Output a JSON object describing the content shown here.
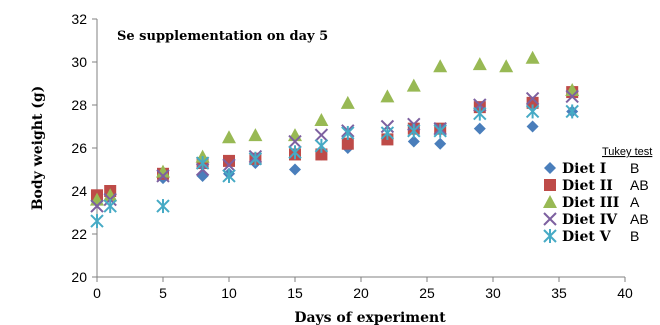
{
  "chart_data": {
    "type": "scatter",
    "title": "Se supplementation on day 5",
    "xlabel": "Days of experiment",
    "ylabel": "Body weight (g)",
    "xlim": [
      0,
      40
    ],
    "ylim": [
      20,
      32
    ],
    "xticks": [
      "0",
      "5",
      "10",
      "15",
      "20",
      "25",
      "30",
      "35",
      "40"
    ],
    "yticks": [
      "20",
      "22",
      "24",
      "26",
      "28",
      "30",
      "32"
    ],
    "grid": false,
    "legend_position": "right",
    "tukey_header": "Tukey test",
    "series": [
      {
        "name": "Diet I",
        "marker": "diamond",
        "color": "#4a7ebb",
        "tukey": "B",
        "points": [
          [
            0,
            23.5
          ],
          [
            1,
            23.9
          ],
          [
            5,
            24.6
          ],
          [
            8,
            24.7
          ],
          [
            10,
            24.8
          ],
          [
            12,
            25.3
          ],
          [
            15,
            25.0
          ],
          [
            17,
            25.7
          ],
          [
            19,
            26.0
          ],
          [
            22,
            26.4
          ],
          [
            24,
            26.3
          ],
          [
            26,
            26.2
          ],
          [
            29,
            26.9
          ],
          [
            33,
            27.0
          ],
          [
            36,
            27.7
          ]
        ]
      },
      {
        "name": "Diet II",
        "marker": "square",
        "color": "#be4b48",
        "tukey": "AB",
        "points": [
          [
            0,
            23.8
          ],
          [
            1,
            24.0
          ],
          [
            5,
            24.8
          ],
          [
            8,
            25.3
          ],
          [
            10,
            25.4
          ],
          [
            12,
            25.5
          ],
          [
            15,
            25.7
          ],
          [
            17,
            25.7
          ],
          [
            19,
            26.2
          ],
          [
            22,
            26.4
          ],
          [
            24,
            26.9
          ],
          [
            26,
            26.9
          ],
          [
            29,
            27.9
          ],
          [
            33,
            28.1
          ],
          [
            36,
            28.6
          ]
        ]
      },
      {
        "name": "Diet III",
        "marker": "triangle",
        "color": "#98b954",
        "tukey": "A",
        "points": [
          [
            0,
            23.6
          ],
          [
            1,
            23.8
          ],
          [
            5,
            24.9
          ],
          [
            8,
            25.6
          ],
          [
            10,
            26.5
          ],
          [
            12,
            26.6
          ],
          [
            15,
            26.6
          ],
          [
            17,
            27.3
          ],
          [
            19,
            28.1
          ],
          [
            22,
            28.4
          ],
          [
            24,
            28.9
          ],
          [
            26,
            29.8
          ],
          [
            29,
            29.9
          ],
          [
            31,
            29.8
          ],
          [
            33,
            30.2
          ],
          [
            36,
            28.7
          ]
        ]
      },
      {
        "name": "Diet IV",
        "marker": "x",
        "color": "#7d60a0",
        "tukey": "AB",
        "points": [
          [
            0,
            23.3
          ],
          [
            1,
            23.6
          ],
          [
            5,
            24.7
          ],
          [
            8,
            25.0
          ],
          [
            10,
            25.2
          ],
          [
            12,
            25.6
          ],
          [
            15,
            26.3
          ],
          [
            17,
            26.6
          ],
          [
            19,
            26.8
          ],
          [
            22,
            27.0
          ],
          [
            24,
            27.1
          ],
          [
            26,
            26.9
          ],
          [
            29,
            28.0
          ],
          [
            33,
            28.3
          ],
          [
            36,
            28.4
          ]
        ]
      },
      {
        "name": "Diet V",
        "marker": "asterisk",
        "color": "#46aac5",
        "tukey": "B",
        "points": [
          [
            0,
            22.6
          ],
          [
            1,
            23.3
          ],
          [
            5,
            23.3
          ],
          [
            8,
            25.3
          ],
          [
            10,
            24.7
          ],
          [
            12,
            25.5
          ],
          [
            15,
            25.8
          ],
          [
            17,
            26.1
          ],
          [
            19,
            26.7
          ],
          [
            22,
            26.7
          ],
          [
            24,
            26.8
          ],
          [
            26,
            26.8
          ],
          [
            29,
            27.6
          ],
          [
            33,
            27.7
          ],
          [
            36,
            27.7
          ]
        ]
      }
    ]
  }
}
